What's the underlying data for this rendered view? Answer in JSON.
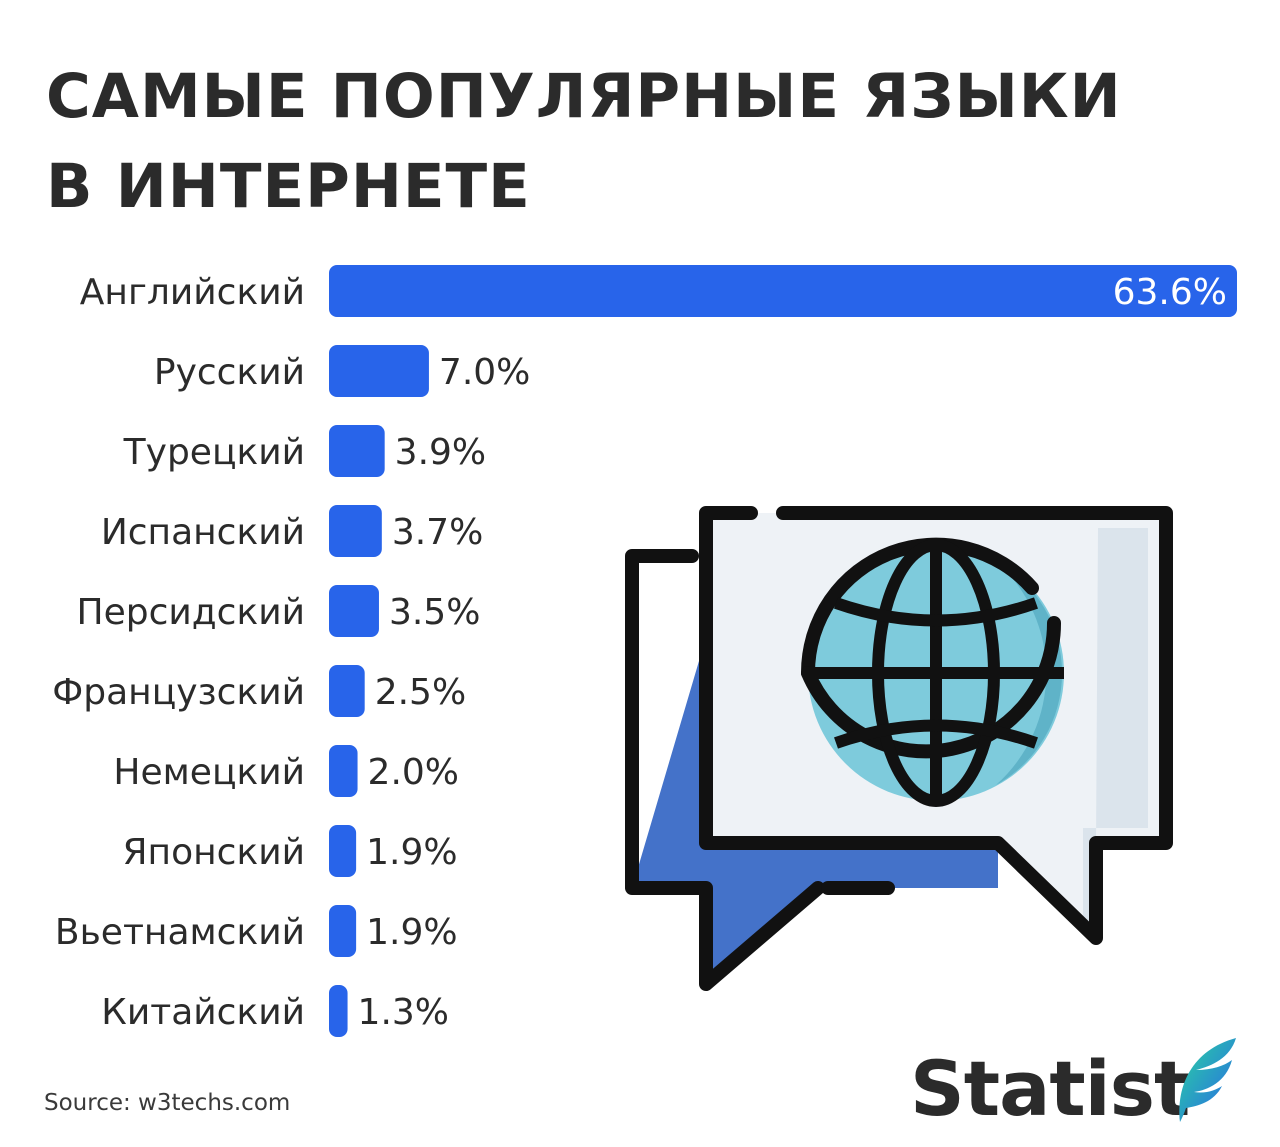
{
  "title": {
    "line1": "САМЫЕ ПОПУЛЯРНЫЕ ЯЗЫКИ",
    "line2": "В ИНТЕРНЕТЕ"
  },
  "source": "Source: w3techs.com",
  "brand": {
    "name": "Statist"
  },
  "colors": {
    "bar": "#2864ea",
    "text": "#2b2b2b",
    "bubble_back": "#4472c9",
    "bubble_front": "#eef2f6",
    "globe": "#7ecbdc"
  },
  "illustration": {
    "icon": "chat-bubbles-globe-icon"
  },
  "chart_data": {
    "type": "bar",
    "orientation": "horizontal",
    "title": "САМЫЕ ПОПУЛЯРНЫЕ ЯЗЫКИ В ИНТЕРНЕТЕ",
    "categories": [
      "Английский",
      "Русский",
      "Турецкий",
      "Испанский",
      "Персидский",
      "Французский",
      "Немецкий",
      "Японский",
      "Вьетнамский",
      "Китайский"
    ],
    "values": [
      63.6,
      7.0,
      3.9,
      3.7,
      3.5,
      2.5,
      2.0,
      1.9,
      1.9,
      1.3
    ],
    "value_labels": [
      "63.6%",
      "7.0%",
      "3.9%",
      "3.7%",
      "3.5%",
      "2.5%",
      "2.0%",
      "1.9%",
      "1.9%",
      "1.3%"
    ],
    "unit": "%",
    "xlim": [
      0,
      63.6
    ],
    "grid": false
  }
}
